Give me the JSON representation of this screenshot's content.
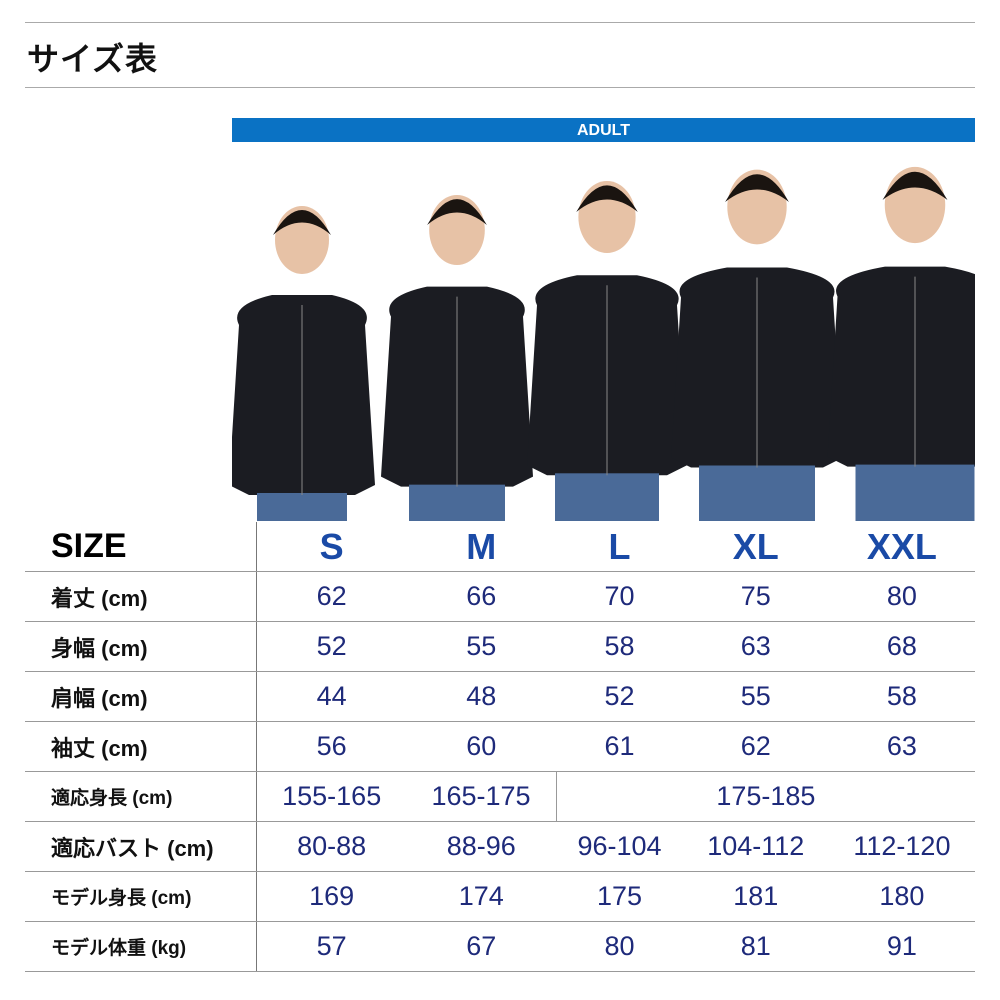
{
  "title": "サイズ表",
  "banner": "ADULT",
  "colors": {
    "banner": "#0a72c4",
    "size_header": "#1a4aa6",
    "values": "#1e2a7a"
  },
  "table": {
    "header": {
      "label": "SIZE",
      "sizes": [
        "S",
        "M",
        "L",
        "XL",
        "XXL"
      ]
    },
    "rows": [
      {
        "label": "着丈 (cm)",
        "values": [
          "62",
          "66",
          "70",
          "75",
          "80"
        ]
      },
      {
        "label": "身幅 (cm)",
        "values": [
          "52",
          "55",
          "58",
          "63",
          "68"
        ]
      },
      {
        "label": "肩幅 (cm)",
        "values": [
          "44",
          "48",
          "52",
          "55",
          "58"
        ]
      },
      {
        "label": "袖丈 (cm)",
        "values": [
          "56",
          "60",
          "61",
          "62",
          "63"
        ]
      },
      {
        "label": "適応身長 (cm)",
        "values": [
          "155-165",
          "165-175",
          "175-185"
        ]
      },
      {
        "label": "適応バスト (cm)",
        "values": [
          "80-88",
          "88-96",
          "96-104",
          "104-112",
          "112-120"
        ]
      },
      {
        "label": "モデル身長 (cm)",
        "values": [
          "169",
          "174",
          "175",
          "181",
          "180"
        ]
      },
      {
        "label": "モデル体重 (kg)",
        "values": [
          "57",
          "67",
          "80",
          "81",
          "91"
        ]
      }
    ]
  }
}
